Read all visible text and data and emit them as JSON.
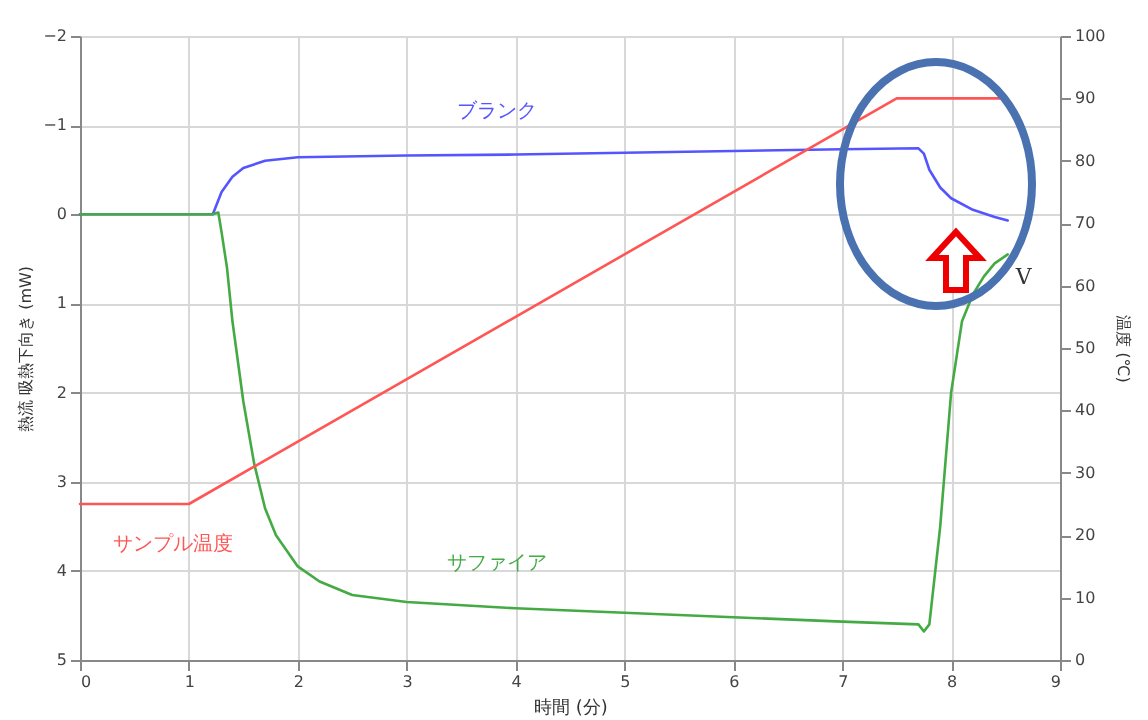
{
  "chart_data": {
    "type": "line",
    "xlabel": "時間 (分)",
    "ylabel": "熱流 吸熱下向き (mW)",
    "y2label": "温度 (℃)",
    "xlim": [
      0,
      9
    ],
    "xticks": [
      0,
      1,
      2,
      3,
      4,
      5,
      6,
      7,
      8,
      9
    ],
    "ylim": [
      5,
      -2
    ],
    "yticks": [
      -2,
      -1,
      0,
      1,
      2,
      3,
      4,
      5
    ],
    "y2lim": [
      0,
      100
    ],
    "y2ticks": [
      0,
      10,
      20,
      30,
      40,
      50,
      60,
      70,
      80,
      90,
      100
    ],
    "grid": true,
    "legend": false,
    "series": [
      {
        "name": "ブランク",
        "color": "#5555ff",
        "x": [
          0,
          1.22,
          1.3,
          1.4,
          1.5,
          1.7,
          2,
          3,
          4,
          5,
          6,
          7,
          7.7,
          7.75,
          7.8,
          7.9,
          8,
          8.2,
          8.4,
          8.52
        ],
        "values": [
          0,
          0,
          -0.25,
          -0.42,
          -0.52,
          -0.6,
          -0.64,
          -0.66,
          -0.67,
          -0.69,
          -0.71,
          -0.73,
          -0.74,
          -0.68,
          -0.5,
          -0.3,
          -0.18,
          -0.05,
          0.03,
          0.07
        ]
      },
      {
        "name": "サファイア",
        "color": "#44aa44",
        "x": [
          0,
          1.22,
          1.27,
          1.3,
          1.35,
          1.4,
          1.5,
          1.6,
          1.7,
          1.8,
          2,
          2.2,
          2.5,
          3,
          4,
          5,
          6,
          7,
          7.7,
          7.75,
          7.8,
          7.9,
          8,
          8.1,
          8.2,
          8.3,
          8.4,
          8.52
        ],
        "values": [
          0,
          0,
          -0.02,
          0.2,
          0.6,
          1.2,
          2.1,
          2.8,
          3.3,
          3.6,
          3.95,
          4.12,
          4.27,
          4.35,
          4.42,
          4.47,
          4.52,
          4.57,
          4.6,
          4.68,
          4.6,
          3.5,
          2.0,
          1.2,
          0.9,
          0.7,
          0.55,
          0.45
        ]
      },
      {
        "name": "サンプル温度",
        "color": "#ff5555",
        "axis": "y2",
        "x": [
          0,
          1,
          7.5,
          8.5
        ],
        "values": [
          25,
          25,
          90,
          90
        ]
      }
    ],
    "annotations": [
      "V"
    ]
  }
}
